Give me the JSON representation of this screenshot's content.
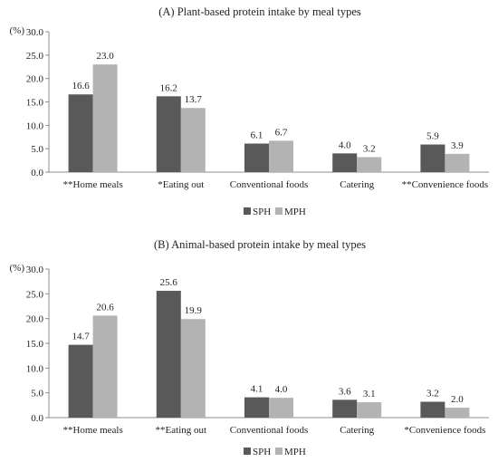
{
  "chart_data": [
    {
      "type": "bar",
      "title": "(A) Plant-based protein intake by meal types",
      "ylabel": "(%)",
      "ylim": [
        0,
        30
      ],
      "yticks": [
        "0.0",
        "5.0",
        "10.0",
        "15.0",
        "20.0",
        "25.0",
        "30.0"
      ],
      "grid": false,
      "legend_position": "bottom",
      "categories": [
        "**Home meals",
        "*Eating out",
        "Conventional foods",
        "Catering",
        "**Convenience foods"
      ],
      "series": [
        {
          "name": "SPH",
          "color": "#595959",
          "values": [
            16.6,
            16.2,
            6.1,
            4.0,
            5.9
          ],
          "labels": [
            "16.6",
            "16.2",
            "6.1",
            "4.0",
            "5.9"
          ]
        },
        {
          "name": "MPH",
          "color": "#b3b3b3",
          "values": [
            23.0,
            13.7,
            6.7,
            3.2,
            3.9
          ],
          "labels": [
            "23.0",
            "13.7",
            "6.7",
            "3.2",
            "3.9"
          ]
        }
      ]
    },
    {
      "type": "bar",
      "title": "(B) Animal-based protein intake by meal types",
      "ylabel": "(%)",
      "ylim": [
        0,
        30
      ],
      "yticks": [
        "0.0",
        "5.0",
        "10.0",
        "15.0",
        "20.0",
        "25.0",
        "30.0"
      ],
      "grid": false,
      "legend_position": "bottom",
      "categories": [
        "**Home meals",
        "**Eating out",
        "Conventional foods",
        "Catering",
        "*Convenience foods"
      ],
      "series": [
        {
          "name": "SPH",
          "color": "#595959",
          "values": [
            14.7,
            25.6,
            4.1,
            3.6,
            3.2
          ],
          "labels": [
            "14.7",
            "25.6",
            "4.1",
            "3.6",
            "3.2"
          ]
        },
        {
          "name": "MPH",
          "color": "#b3b3b3",
          "values": [
            20.6,
            19.9,
            4.0,
            3.1,
            2.0
          ],
          "labels": [
            "20.6",
            "19.9",
            "4.0",
            "3.1",
            "2.0"
          ]
        }
      ]
    }
  ]
}
